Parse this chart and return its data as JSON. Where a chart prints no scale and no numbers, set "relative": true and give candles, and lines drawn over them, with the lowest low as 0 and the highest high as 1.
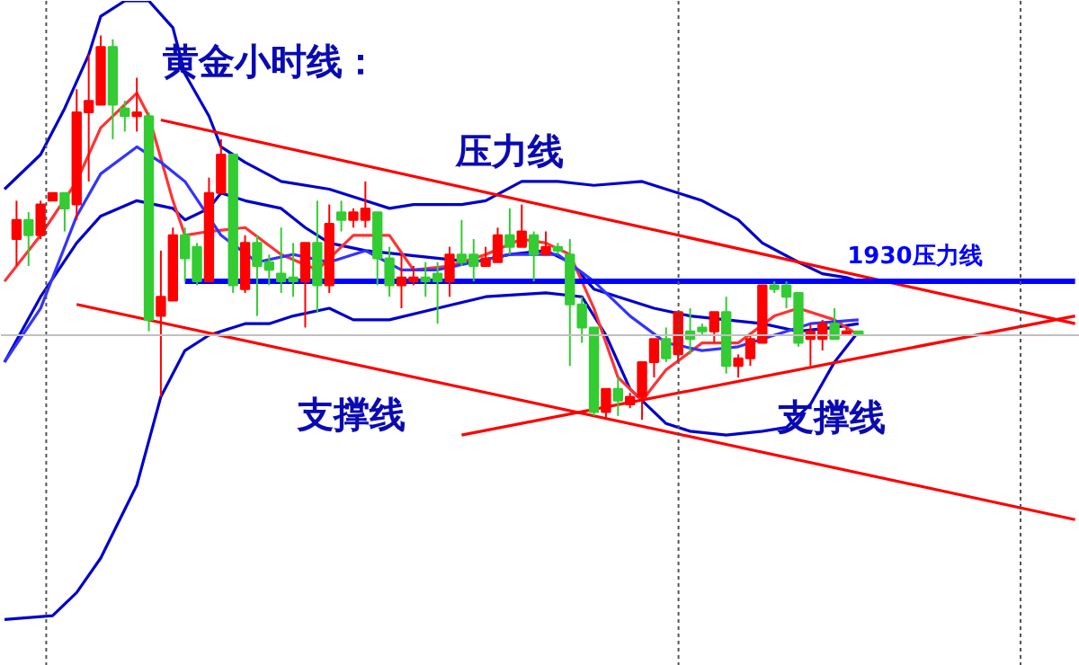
{
  "chart_data": {
    "type": "candlestick",
    "title": "黄金小时线：",
    "relative": true,
    "categories": [
      null,
      null,
      null,
      null,
      null,
      null,
      null,
      null,
      null,
      null,
      null,
      null,
      null,
      null,
      null,
      null,
      null,
      null,
      null,
      null,
      null,
      null,
      null,
      null,
      null,
      null,
      null,
      null,
      null,
      null,
      null,
      null,
      null,
      null,
      null,
      null,
      null,
      null,
      null,
      null,
      null,
      null,
      null,
      null,
      null,
      null,
      null,
      null,
      null,
      null,
      null,
      null,
      null,
      null,
      null,
      null,
      null,
      null,
      null,
      null,
      null,
      null,
      null,
      null,
      null,
      null,
      null,
      null,
      null,
      null,
      null,
      null,
      null,
      null,
      null,
      null,
      null,
      null,
      null,
      null,
      null,
      null,
      null,
      null,
      null,
      null,
      null,
      null,
      null,
      null
    ],
    "ohlc": [
      null,
      [
        0.47,
        0.57,
        0.4,
        0.52
      ],
      [
        0.52,
        0.54,
        0.4,
        0.48
      ],
      [
        0.48,
        0.57,
        0.47,
        0.56
      ],
      [
        0.57,
        0.59,
        0.57,
        0.59
      ],
      [
        0.59,
        0.59,
        0.49,
        0.55
      ],
      [
        0.56,
        0.86,
        0.52,
        0.8
      ],
      [
        0.8,
        0.95,
        0.62,
        0.83
      ],
      [
        0.82,
        1.0,
        0.82,
        0.97
      ],
      [
        0.97,
        0.99,
        0.73,
        0.82
      ],
      [
        0.81,
        0.83,
        0.75,
        0.79
      ],
      [
        0.79,
        0.89,
        0.75,
        0.8
      ],
      [
        0.79,
        0.8,
        0.23,
        0.26
      ],
      [
        0.27,
        0.44,
        0.06,
        0.32
      ],
      [
        0.31,
        0.5,
        0.31,
        0.48
      ],
      [
        0.48,
        0.5,
        0.36,
        0.42
      ],
      [
        0.45,
        0.46,
        0.35,
        0.36
      ],
      [
        0.36,
        0.63,
        0.36,
        0.59
      ],
      [
        0.59,
        0.73,
        0.59,
        0.69
      ],
      [
        0.69,
        0.69,
        0.33,
        0.35
      ],
      [
        0.34,
        0.48,
        0.33,
        0.46
      ],
      [
        0.46,
        0.48,
        0.27,
        0.4
      ],
      [
        0.41,
        0.43,
        0.35,
        0.39
      ],
      [
        0.38,
        0.5,
        0.33,
        0.36
      ],
      [
        0.37,
        0.46,
        0.32,
        0.36
      ],
      [
        0.36,
        0.46,
        0.24,
        0.46
      ],
      [
        0.46,
        0.57,
        0.28,
        0.35
      ],
      [
        0.35,
        0.56,
        0.33,
        0.51
      ],
      [
        0.54,
        0.57,
        0.49,
        0.52
      ],
      [
        0.52,
        0.55,
        0.5,
        0.54
      ],
      [
        0.52,
        0.62,
        0.5,
        0.55
      ],
      [
        0.54,
        0.54,
        0.35,
        0.42
      ],
      [
        0.42,
        0.45,
        0.32,
        0.35
      ],
      [
        0.35,
        0.43,
        0.29,
        0.37
      ],
      [
        0.36,
        0.4,
        0.35,
        0.37
      ],
      [
        0.37,
        0.41,
        0.32,
        0.36
      ],
      [
        0.38,
        0.41,
        0.25,
        0.36
      ],
      [
        0.36,
        0.45,
        0.32,
        0.43
      ],
      [
        0.43,
        0.52,
        0.4,
        0.41
      ],
      [
        0.43,
        0.47,
        0.36,
        0.4
      ],
      [
        0.4,
        0.45,
        0.4,
        0.42
      ],
      [
        0.41,
        0.5,
        0.41,
        0.48
      ],
      [
        0.48,
        0.55,
        0.43,
        0.45
      ],
      [
        0.45,
        0.56,
        0.45,
        0.49
      ],
      [
        0.48,
        0.49,
        0.36,
        0.43
      ],
      [
        0.43,
        0.49,
        0.43,
        0.45
      ],
      [
        0.45,
        0.46,
        0.43,
        0.44
      ],
      [
        0.43,
        0.47,
        0.14,
        0.3
      ],
      [
        0.3,
        0.32,
        0.2,
        0.24
      ],
      [
        0.24,
        0.24,
        0.01,
        0.02
      ],
      [
        0.02,
        0.08,
        0,
        0.08
      ],
      [
        0.08,
        0.11,
        0.01,
        0.05
      ],
      [
        0.04,
        0.07,
        0.03,
        0.06
      ],
      [
        0.06,
        0.15,
        0,
        0.15
      ],
      [
        0.15,
        0.21,
        0.11,
        0.21
      ],
      [
        0.21,
        0.24,
        0.15,
        0.16
      ],
      [
        0.17,
        0.28,
        0.15,
        0.28
      ],
      [
        0.23,
        0.29,
        0.17,
        0.21
      ],
      [
        0.24,
        0.25,
        0.22,
        0.23
      ],
      [
        0.23,
        0.28,
        0.2,
        0.28
      ],
      [
        0.28,
        0.32,
        0.12,
        0.14
      ],
      [
        0.14,
        0.17,
        0.11,
        0.16
      ],
      [
        0.16,
        0.22,
        0.14,
        0.21
      ],
      [
        0.2,
        0.35,
        0.2,
        0.35
      ],
      [
        0.35,
        0.36,
        0.33,
        0.34
      ],
      [
        0.35,
        0.36,
        0.29,
        0.32
      ],
      [
        0.33,
        0.33,
        0.19,
        0.2
      ],
      [
        0.21,
        0.25,
        0.14,
        0.23
      ],
      [
        0.21,
        0.26,
        0.18,
        0.25
      ],
      [
        0.25,
        0.29,
        0.21,
        0.21
      ],
      [
        0.22,
        0.24,
        0.22,
        0.23
      ],
      [
        0.23,
        0.23,
        0.22,
        0.22
      ],
      null,
      null,
      null,
      null,
      null,
      null,
      null,
      null,
      null,
      null,
      null,
      null,
      null,
      null,
      null,
      null,
      null,
      null
    ],
    "colors": [
      null,
      "#ff0000",
      "#33cc33",
      "#ff0000",
      "#ff0000",
      "#33cc33",
      "#ff0000",
      "#ff0000",
      "#ff0000",
      "#33cc33",
      "#33cc33",
      "#ff0000",
      "#33cc33",
      "#ff0000",
      "#ff0000",
      "#33cc33",
      "#33cc33",
      "#ff0000",
      "#ff0000",
      "#33cc33",
      "#ff0000",
      "#33cc33",
      "#33cc33",
      "#33cc33",
      "#33cc33",
      "#ff0000",
      "#33cc33",
      "#ff0000",
      "#33cc33",
      "#ff0000",
      "#ff0000",
      "#33cc33",
      "#33cc33",
      "#ff0000",
      "#ff0000",
      "#33cc33",
      "#33cc33",
      "#ff0000",
      "#33cc33",
      "#33cc33",
      "#ff0000",
      "#ff0000",
      "#33cc33",
      "#ff0000",
      "#33cc33",
      "#ff0000",
      "#33cc33",
      "#33cc33",
      "#33cc33",
      "#33cc33",
      "#ff0000",
      "#33cc33",
      "#ff0000",
      "#ff0000",
      "#ff0000",
      "#33cc33",
      "#ff0000",
      "#33cc33",
      "#33cc33",
      "#ff0000",
      "#33cc33",
      "#ff0000",
      "#ff0000",
      "#ff0000",
      "#33cc33",
      "#33cc33",
      "#33cc33",
      "#ff0000",
      "#ff0000",
      "#33cc33",
      "#ff0000",
      "#33cc33",
      null,
      null,
      null,
      null,
      null,
      null,
      null,
      null,
      null,
      null,
      null,
      null,
      null,
      null,
      null,
      null,
      null,
      null
    ],
    "series": [
      {
        "type": "line",
        "color": "#0000cc",
        "values": [
          0.6,
          null,
          null,
          0.69,
          null,
          0.81,
          null,
          0.95,
          1.05,
          null,
          1.09,
          null,
          1.09,
          null,
          1.02,
          0.9,
          null,
          0.79,
          0.71,
          null,
          0.67,
          null,
          null,
          0.62,
          null,
          null,
          null,
          0.6,
          null,
          null,
          0.57,
          null,
          0.55,
          null,
          0.56,
          null,
          null,
          null,
          0.56,
          null,
          0.57,
          null,
          null,
          0.62,
          null,
          null,
          0.62,
          null,
          null,
          0.61,
          null,
          null,
          null,
          0.62,
          null,
          0.6,
          null,
          null,
          0.57,
          null,
          null,
          0.52,
          null,
          0.46,
          null,
          null,
          0.41,
          null,
          0.38,
          null,
          0.37,
          0.36,
          null,
          null,
          null,
          null,
          null,
          null,
          null,
          null,
          null,
          null,
          null,
          null,
          null,
          null,
          null,
          null,
          null,
          null
        ]
      },
      {
        "type": "line",
        "color": "#0000cc",
        "values": [
          0.15,
          null,
          null,
          0.32,
          null,
          null,
          0.46,
          null,
          0.53,
          null,
          null,
          0.57,
          null,
          null,
          0.55,
          0.52,
          null,
          0.55,
          0.59,
          null,
          0.57,
          null,
          null,
          0.55,
          null,
          0.5,
          null,
          0.46,
          null,
          null,
          0.44,
          null,
          null,
          0.43,
          null,
          null,
          0.42,
          null,
          null,
          0.41,
          null,
          null,
          0.43,
          null,
          null,
          0.44,
          null,
          0.41,
          null,
          0.34,
          null,
          null,
          0.31,
          null,
          0.29,
          null,
          null,
          0.27,
          null,
          null,
          0.26,
          null,
          null,
          0.25,
          null,
          null,
          0.23,
          null,
          null,
          0.24,
          null,
          0.25,
          null,
          null,
          null,
          null,
          null,
          null,
          null,
          null,
          null,
          null,
          null,
          null,
          null,
          null,
          null,
          null,
          null,
          null
        ]
      },
      {
        "type": "line",
        "color": "#0000cc",
        "values": [
          -0.52,
          null,
          null,
          null,
          -0.51,
          null,
          -0.45,
          null,
          -0.36,
          null,
          null,
          -0.17,
          null,
          0.06,
          null,
          0.18,
          null,
          0.22,
          null,
          null,
          0.25,
          null,
          0.25,
          null,
          0.27,
          null,
          null,
          0.29,
          null,
          0.26,
          null,
          null,
          0.26,
          null,
          null,
          null,
          0.29,
          null,
          null,
          null,
          0.32,
          null,
          null,
          null,
          null,
          0.33,
          null,
          null,
          0.32,
          null,
          0.22,
          null,
          0.08,
          null,
          null,
          -0.01,
          null,
          -0.03,
          null,
          null,
          -0.04,
          null,
          null,
          -0.03,
          null,
          -0.02,
          null,
          0.04,
          null,
          0.15,
          null,
          0.23,
          null,
          null,
          null,
          null,
          null,
          null,
          null,
          null,
          null,
          null,
          null,
          null,
          null,
          null,
          null,
          null,
          null,
          null
        ]
      },
      {
        "type": "line",
        "color": "#ff3333",
        "values": [
          0.36,
          null,
          null,
          0.48,
          null,
          null,
          0.62,
          null,
          0.76,
          null,
          null,
          0.85,
          0.79,
          null,
          0.57,
          0.48,
          null,
          0.49,
          null,
          null,
          0.5,
          null,
          null,
          0.43,
          null,
          null,
          0.39,
          null,
          null,
          0.48,
          null,
          null,
          0.48,
          null,
          0.39,
          null,
          null,
          0.4,
          null,
          null,
          0.43,
          null,
          null,
          0.47,
          null,
          0.46,
          null,
          0.43,
          null,
          0.29,
          null,
          0.11,
          null,
          0.05,
          null,
          0.13,
          null,
          null,
          0.2,
          null,
          null,
          0.2,
          null,
          null,
          0.27,
          null,
          0.29,
          null,
          null,
          0.26,
          null,
          0.22,
          null,
          null,
          null,
          null,
          null,
          null,
          null,
          null,
          null,
          null,
          null,
          null,
          null,
          null,
          null,
          null,
          null,
          null
        ]
      },
      {
        "type": "line",
        "color": "#3333ff",
        "values": [
          0.15,
          null,
          null,
          0.29,
          null,
          null,
          0.53,
          null,
          0.64,
          null,
          null,
          0.71,
          null,
          0.67,
          null,
          0.62,
          null,
          null,
          0.48,
          null,
          null,
          0.41,
          null,
          null,
          0.43,
          null,
          null,
          0.41,
          null,
          null,
          0.44,
          null,
          null,
          0.39,
          null,
          null,
          0.39,
          null,
          null,
          0.41,
          null,
          null,
          0.43,
          null,
          null,
          null,
          0.43,
          null,
          null,
          0.36,
          null,
          null,
          0.27,
          null,
          null,
          0.2,
          null,
          null,
          0.18,
          null,
          null,
          0.19,
          null,
          null,
          0.22,
          null,
          null,
          0.25,
          null,
          null,
          null,
          0.26,
          null,
          null,
          null,
          null,
          null,
          null,
          null,
          null,
          null,
          null,
          null,
          null,
          null,
          null,
          null,
          null,
          null,
          null
        ]
      },
      {
        "type": "line",
        "color": "#ff0000",
        "values": [
          null,
          null,
          null,
          null,
          null,
          null,
          null,
          null,
          null,
          null,
          null,
          null,
          null,
          0.78,
          null,
          null,
          null,
          null,
          null,
          null,
          null,
          null,
          null,
          null,
          null,
          null,
          null,
          null,
          null,
          null,
          null,
          null,
          null,
          null,
          null,
          null,
          null,
          null,
          null,
          null,
          null,
          null,
          null,
          null,
          null,
          null,
          null,
          null,
          null,
          null,
          null,
          null,
          null,
          null,
          null,
          null,
          null,
          null,
          null,
          null,
          null,
          null,
          null,
          null,
          null,
          null,
          null,
          null,
          null,
          null,
          null,
          null,
          null,
          null,
          null,
          null,
          null,
          null,
          null,
          null,
          null,
          null,
          null,
          null,
          null,
          null,
          null,
          null,
          null,
          0.25
        ]
      },
      {
        "type": "line",
        "color": "#ff0000",
        "values": [
          null,
          null,
          null,
          null,
          null,
          null,
          0.3,
          null,
          null,
          null,
          null,
          null,
          null,
          null,
          null,
          null,
          null,
          null,
          null,
          null,
          null,
          null,
          null,
          null,
          null,
          null,
          null,
          null,
          null,
          null,
          null,
          null,
          null,
          null,
          null,
          null,
          null,
          null,
          null,
          null,
          null,
          null,
          null,
          null,
          null,
          null,
          null,
          null,
          null,
          null,
          null,
          null,
          null,
          null,
          null,
          null,
          null,
          null,
          null,
          null,
          null,
          null,
          null,
          null,
          null,
          null,
          null,
          null,
          null,
          null,
          null,
          null,
          null,
          null,
          null,
          null,
          null,
          null,
          null,
          null,
          null,
          null,
          null,
          null,
          null,
          null,
          null,
          null,
          null,
          -0.26
        ]
      },
      {
        "type": "line",
        "color": "#ff0000",
        "values": [
          null,
          null,
          null,
          null,
          null,
          null,
          null,
          null,
          null,
          null,
          null,
          null,
          null,
          null,
          null,
          null,
          null,
          null,
          null,
          null,
          null,
          null,
          null,
          null,
          null,
          null,
          null,
          null,
          null,
          null,
          null,
          null,
          null,
          null,
          null,
          null,
          null,
          null,
          -0.04,
          null,
          null,
          null,
          null,
          null,
          null,
          null,
          null,
          null,
          null,
          null,
          null,
          null,
          null,
          null,
          null,
          null,
          null,
          null,
          null,
          null,
          null,
          null,
          null,
          null,
          null,
          null,
          null,
          null,
          null,
          null,
          null,
          null,
          null,
          null,
          null,
          null,
          null,
          null,
          null,
          null,
          null,
          null,
          null,
          null,
          null,
          null,
          null,
          null,
          null,
          0.27
        ]
      },
      {
        "type": "line",
        "name": "1930压力线",
        "color": "#0000ff",
        "values": [
          null,
          null,
          null,
          null,
          null,
          null,
          null,
          null,
          null,
          null,
          null,
          null,
          null,
          null,
          null,
          0.36,
          null,
          null,
          null,
          null,
          null,
          null,
          null,
          null,
          null,
          null,
          null,
          null,
          null,
          null,
          null,
          null,
          null,
          null,
          null,
          null,
          null,
          null,
          null,
          null,
          null,
          null,
          null,
          null,
          null,
          null,
          null,
          null,
          null,
          null,
          null,
          null,
          null,
          null,
          null,
          null,
          null,
          null,
          null,
          null,
          null,
          null,
          null,
          null,
          null,
          null,
          null,
          null,
          null,
          null,
          null,
          null,
          null,
          null,
          null,
          null,
          null,
          null,
          null,
          null,
          null,
          null,
          null,
          null,
          null,
          null,
          null,
          null,
          null,
          0.36
        ]
      }
    ],
    "ref_lines": [
      {
        "axis": "y",
        "value": 0.22,
        "color": "#c0c0c0",
        "line_style": "solid"
      }
    ],
    "annotations": [
      "压力线",
      "支撑线",
      "支撑线"
    ]
  }
}
